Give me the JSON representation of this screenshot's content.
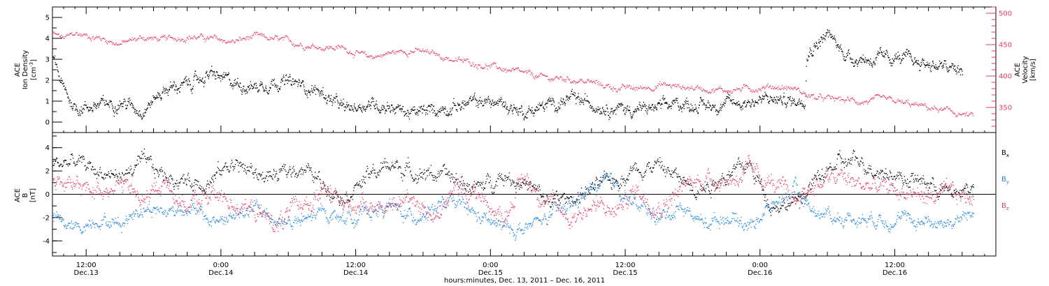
{
  "chart_data": [
    {
      "type": "scatter",
      "panel": "top",
      "y_left_label": [
        "ACE",
        "Ion Density",
        "[cm^-3]"
      ],
      "y_right_label": [
        "ACE",
        "Velocity",
        "[km/s]"
      ],
      "y_left_ticks": [
        "0",
        "1",
        "2",
        "3",
        "4",
        "5"
      ],
      "y_left_range": [
        -0.5,
        5.5
      ],
      "y_right_ticks": [
        "350",
        "400",
        "450",
        "500"
      ],
      "y_right_range": [
        310,
        510
      ],
      "x_range_hours": [
        0,
        84
      ],
      "series": [
        {
          "axis": "left",
          "color": "#000000",
          "knots": [
            [
              0,
              3.1
            ],
            [
              1,
              1.5
            ],
            [
              2,
              0.7
            ],
            [
              4,
              0.8
            ],
            [
              6,
              1.0
            ],
            [
              8,
              0.6
            ],
            [
              10,
              1.6
            ],
            [
              12,
              1.8
            ],
            [
              14,
              2.3
            ],
            [
              16,
              1.9
            ],
            [
              18,
              1.7
            ],
            [
              20,
              2.0
            ],
            [
              22,
              1.8
            ],
            [
              24,
              1.4
            ],
            [
              26,
              0.6
            ],
            [
              28,
              0.9
            ],
            [
              30,
              0.8
            ],
            [
              32,
              0.4
            ],
            [
              34,
              0.6
            ],
            [
              36,
              0.8
            ],
            [
              38,
              1.0
            ],
            [
              40,
              0.9
            ],
            [
              42,
              0.5
            ],
            [
              44,
              0.8
            ],
            [
              46,
              1.1
            ],
            [
              48,
              0.9
            ],
            [
              50,
              0.7
            ],
            [
              52,
              0.6
            ],
            [
              54,
              0.7
            ],
            [
              56,
              0.9
            ],
            [
              58,
              0.8
            ],
            [
              60,
              0.9
            ],
            [
              62,
              1.0
            ],
            [
              64,
              1.1
            ],
            [
              66,
              1.0
            ],
            [
              67,
              1.2
            ],
            [
              67.1,
              3.3
            ],
            [
              68,
              3.8
            ],
            [
              69,
              4.2
            ],
            [
              70,
              3.6
            ],
            [
              71,
              3.1
            ],
            [
              73,
              3.0
            ],
            [
              75,
              3.1
            ],
            [
              77,
              2.9
            ],
            [
              79,
              2.7
            ],
            [
              81,
              2.4
            ]
          ],
          "x_extent": [
            0,
            81
          ],
          "noise": 0.35
        },
        {
          "axis": "right",
          "color": "#e8395f",
          "knots": [
            [
              0,
              468
            ],
            [
              1,
              460
            ],
            [
              2,
              468
            ],
            [
              4,
              462
            ],
            [
              6,
              452
            ],
            [
              8,
              462
            ],
            [
              10,
              458
            ],
            [
              12,
              464
            ],
            [
              14,
              460
            ],
            [
              16,
              455
            ],
            [
              18,
              463
            ],
            [
              20,
              458
            ],
            [
              22,
              452
            ],
            [
              24,
              447
            ],
            [
              26,
              445
            ],
            [
              28,
              430
            ],
            [
              30,
              437
            ],
            [
              32,
              442
            ],
            [
              34,
              435
            ],
            [
              36,
              425
            ],
            [
              38,
              420
            ],
            [
              40,
              412
            ],
            [
              42,
              403
            ],
            [
              44,
              397
            ],
            [
              46,
              396
            ],
            [
              48,
              390
            ],
            [
              50,
              382
            ],
            [
              52,
              380
            ],
            [
              54,
              387
            ],
            [
              56,
              383
            ],
            [
              58,
              381
            ],
            [
              60,
              378
            ],
            [
              62,
              381
            ],
            [
              64,
              384
            ],
            [
              66,
              381
            ],
            [
              67,
              372
            ],
            [
              68,
              365
            ],
            [
              70,
              363
            ],
            [
              72,
              360
            ],
            [
              74,
              362
            ],
            [
              76,
              356
            ],
            [
              78,
              350
            ],
            [
              80,
              343
            ],
            [
              82,
              336
            ]
          ],
          "x_extent": [
            0,
            82
          ],
          "noise": 6
        }
      ]
    },
    {
      "type": "scatter",
      "panel": "bottom",
      "y_label": [
        "ACE",
        "B",
        "[nT]"
      ],
      "y_ticks": [
        "-4",
        "-2",
        "0",
        "2",
        "4"
      ],
      "y_range": [
        -5.3,
        5.3
      ],
      "series": [
        {
          "name": "B_x",
          "color": "#000000",
          "knots": [
            [
              0,
              2.6
            ],
            [
              2,
              2.8
            ],
            [
              4,
              2.0
            ],
            [
              6,
              1.5
            ],
            [
              8,
              2.7
            ],
            [
              10,
              1.6
            ],
            [
              12,
              1.1
            ],
            [
              14,
              1.2
            ],
            [
              16,
              2.8
            ],
            [
              18,
              1.8
            ],
            [
              20,
              1.5
            ],
            [
              22,
              2.5
            ],
            [
              24,
              1.0
            ],
            [
              26,
              0.0
            ],
            [
              28,
              1.5
            ],
            [
              30,
              2.6
            ],
            [
              32,
              2.0
            ],
            [
              34,
              1.8
            ],
            [
              36,
              1.2
            ],
            [
              38,
              0.5
            ],
            [
              40,
              1.8
            ],
            [
              42,
              1.0
            ],
            [
              44,
              -0.6
            ],
            [
              46,
              -0.4
            ],
            [
              48,
              0.5
            ],
            [
              50,
              1.2
            ],
            [
              52,
              2.4
            ],
            [
              54,
              2.5
            ],
            [
              56,
              1.2
            ],
            [
              58,
              0.6
            ],
            [
              60,
              1.8
            ],
            [
              62,
              2.5
            ],
            [
              64,
              -0.8
            ],
            [
              66,
              -0.8
            ],
            [
              68,
              1.2
            ],
            [
              70,
              2.7
            ],
            [
              72,
              2.8
            ],
            [
              74,
              2.0
            ],
            [
              76,
              1.4
            ],
            [
              78,
              1.0
            ],
            [
              80,
              0.0
            ],
            [
              82,
              0.8
            ]
          ],
          "x_extent": [
            0,
            82
          ],
          "noise": 0.8
        },
        {
          "name": "B_y",
          "color": "#1e83dc",
          "knots": [
            [
              0,
              -2.0
            ],
            [
              2,
              -3.0
            ],
            [
              4,
              -2.0
            ],
            [
              6,
              -2.5
            ],
            [
              8,
              -1.0
            ],
            [
              10,
              -1.5
            ],
            [
              12,
              -1.0
            ],
            [
              14,
              -2.3
            ],
            [
              16,
              -2.0
            ],
            [
              18,
              -1.2
            ],
            [
              20,
              -2.2
            ],
            [
              22,
              -2.5
            ],
            [
              24,
              -1.5
            ],
            [
              26,
              -2.0
            ],
            [
              28,
              -1.5
            ],
            [
              30,
              -1.0
            ],
            [
              32,
              -2.0
            ],
            [
              34,
              -1.0
            ],
            [
              36,
              -0.8
            ],
            [
              38,
              -2.0
            ],
            [
              40,
              -2.8
            ],
            [
              42,
              -3.0
            ],
            [
              44,
              -2.0
            ],
            [
              46,
              -1.0
            ],
            [
              48,
              0.5
            ],
            [
              50,
              1.0
            ],
            [
              52,
              -1.0
            ],
            [
              54,
              -2.0
            ],
            [
              56,
              -1.0
            ],
            [
              58,
              -2.5
            ],
            [
              60,
              -1.8
            ],
            [
              62,
              -2.6
            ],
            [
              64,
              -1.0
            ],
            [
              66,
              0.4
            ],
            [
              68,
              -1.5
            ],
            [
              70,
              -2.0
            ],
            [
              72,
              -2.0
            ],
            [
              74,
              -2.0
            ],
            [
              76,
              -2.2
            ],
            [
              78,
              -2.3
            ],
            [
              80,
              -2.4
            ],
            [
              82,
              -1.6
            ]
          ],
          "x_extent": [
            0,
            82
          ],
          "noise": 0.7
        },
        {
          "name": "B_z",
          "color": "#e8395f",
          "knots": [
            [
              0,
              1.5
            ],
            [
              2,
              0.5
            ],
            [
              4,
              0.5
            ],
            [
              6,
              1.0
            ],
            [
              8,
              -0.5
            ],
            [
              10,
              1.0
            ],
            [
              12,
              -1.0
            ],
            [
              14,
              0.0
            ],
            [
              16,
              -0.5
            ],
            [
              18,
              -1.5
            ],
            [
              20,
              -2.5
            ],
            [
              22,
              -1.0
            ],
            [
              24,
              0.3
            ],
            [
              26,
              -1.0
            ],
            [
              28,
              -0.5
            ],
            [
              30,
              -1.5
            ],
            [
              32,
              0.0
            ],
            [
              34,
              -2.0
            ],
            [
              36,
              0.5
            ],
            [
              38,
              0.0
            ],
            [
              40,
              -2.0
            ],
            [
              42,
              1.5
            ],
            [
              44,
              -0.5
            ],
            [
              46,
              -2.0
            ],
            [
              48,
              -1.0
            ],
            [
              50,
              -1.5
            ],
            [
              52,
              0.5
            ],
            [
              54,
              -1.0
            ],
            [
              56,
              0.5
            ],
            [
              58,
              1.5
            ],
            [
              60,
              1.2
            ],
            [
              62,
              2.0
            ],
            [
              64,
              1.0
            ],
            [
              66,
              -0.5
            ],
            [
              68,
              1.0
            ],
            [
              70,
              1.5
            ],
            [
              72,
              0.8
            ],
            [
              74,
              0.5
            ],
            [
              76,
              0.2
            ],
            [
              78,
              -0.2
            ],
            [
              80,
              0.0
            ],
            [
              82,
              -0.3
            ]
          ],
          "x_extent": [
            0,
            82
          ],
          "noise": 0.9
        }
      ]
    }
  ],
  "x_axis": {
    "title": "hours:minutes, Dec. 13, 2011 – Dec. 16, 2011",
    "range_hours": [
      0,
      84
    ],
    "major_ticks": [
      {
        "hour": 3,
        "time": "12:00",
        "day": "Dec.13"
      },
      {
        "hour": 15,
        "time": "0:00",
        "day": "Dec.14"
      },
      {
        "hour": 27,
        "time": "12:00",
        "day": "Dec.14"
      },
      {
        "hour": 39,
        "time": "0:00",
        "day": "Dec.15"
      },
      {
        "hour": 51,
        "time": "12:00",
        "day": "Dec.15"
      },
      {
        "hour": 63,
        "time": "0:00",
        "day": "Dec.16"
      },
      {
        "hour": 75,
        "time": "12:00",
        "day": "Dec.16"
      }
    ]
  },
  "legend": {
    "bx": "B",
    "bx_sub": "x",
    "by": "B",
    "by_sub": "y",
    "bz": "B",
    "bz_sub": "z"
  },
  "colors": {
    "density": "#000000",
    "velocity": "#e8395f",
    "bx": "#000000",
    "by": "#1e83dc",
    "bz": "#e8395f"
  }
}
